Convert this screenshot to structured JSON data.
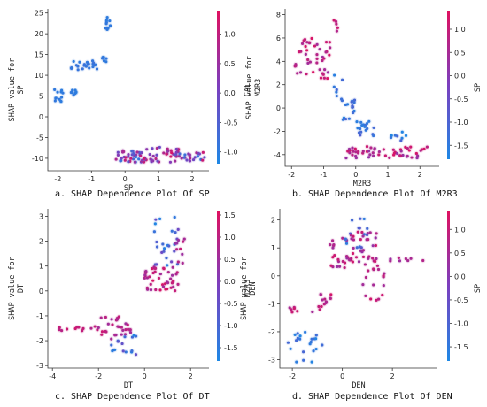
{
  "chart_data": [
    {
      "type": "scatter",
      "caption": "a. SHAP Dependence Plot Of SP",
      "xlabel": "SP",
      "ylabel_lines": [
        "SHAP value for",
        "SP"
      ],
      "color_feature": "CAL",
      "x_ticks": [
        -2,
        -1,
        0,
        1,
        2
      ],
      "y_ticks": [
        -10,
        -5,
        0,
        5,
        10,
        15,
        20,
        25
      ],
      "xlim": [
        -2.3,
        2.5
      ],
      "ylim": [
        -13,
        26
      ],
      "color_ticks": [
        1.0,
        0.5,
        0.0,
        -0.5,
        -1.0
      ],
      "color_range": [
        -1.2,
        1.4
      ],
      "clusters": [
        {
          "x": [
            -2.15,
            -1.85
          ],
          "y": [
            3,
            7
          ],
          "c": [
            -1.0,
            -0.9
          ],
          "n": 12
        },
        {
          "x": [
            -1.65,
            -1.45
          ],
          "y": [
            5,
            7
          ],
          "c": [
            -1.0,
            -0.9
          ],
          "n": 8
        },
        {
          "x": [
            -1.6,
            -0.8
          ],
          "y": [
            11,
            13.5
          ],
          "c": [
            -1.0,
            -0.8
          ],
          "n": 24
        },
        {
          "x": [
            -0.7,
            -0.5
          ],
          "y": [
            13,
            15
          ],
          "c": [
            -1.0,
            -0.9
          ],
          "n": 6
        },
        {
          "x": [
            -0.6,
            -0.4
          ],
          "y": [
            21,
            24
          ],
          "c": [
            -1.0,
            -0.9
          ],
          "n": 12
        },
        {
          "x": [
            -0.3,
            0.5
          ],
          "y": [
            -11,
            -8
          ],
          "c": [
            -1.0,
            1.2
          ],
          "n": 35
        },
        {
          "x": [
            0.5,
            1.6
          ],
          "y": [
            -11,
            -7
          ],
          "c": [
            -0.2,
            1.3
          ],
          "n": 40
        },
        {
          "x": [
            1.5,
            2.4
          ],
          "y": [
            -11,
            -8.5
          ],
          "c": [
            -1.0,
            1.2
          ],
          "n": 25
        }
      ]
    },
    {
      "type": "scatter",
      "caption": "b. SHAP Dependence Plot Of M2R3",
      "xlabel": "M2R3",
      "ylabel_lines": [
        "SHAP value for",
        "M2R3"
      ],
      "color_feature": "SP",
      "x_ticks": [
        -2,
        -1,
        0,
        1,
        2
      ],
      "y_ticks": [
        -4,
        -2,
        0,
        2,
        4,
        6,
        8
      ],
      "xlim": [
        -2.2,
        2.6
      ],
      "ylim": [
        -5,
        8.5
      ],
      "color_ticks": [
        1.0,
        0.5,
        0.0,
        -0.5,
        -1.0,
        -1.5
      ],
      "color_range": [
        -1.8,
        1.4
      ],
      "clusters": [
        {
          "x": [
            -1.9,
            -0.8
          ],
          "y": [
            2.5,
            6
          ],
          "c": [
            0.3,
            1.3
          ],
          "n": 45
        },
        {
          "x": [
            -0.7,
            -0.55
          ],
          "y": [
            6.5,
            8
          ],
          "c": [
            0.5,
            1.2
          ],
          "n": 5
        },
        {
          "x": [
            -0.7,
            -0.4
          ],
          "y": [
            0.5,
            3
          ],
          "c": [
            -1.8,
            -1.0
          ],
          "n": 8
        },
        {
          "x": [
            -0.4,
            0.0
          ],
          "y": [
            -1,
            1
          ],
          "c": [
            -1.8,
            -1.0
          ],
          "n": 15
        },
        {
          "x": [
            0.0,
            0.6
          ],
          "y": [
            -2.5,
            -1
          ],
          "c": [
            -1.6,
            -0.8
          ],
          "n": 18
        },
        {
          "x": [
            -0.3,
            2.3
          ],
          "y": [
            -4.3,
            -3.3
          ],
          "c": [
            0.2,
            1.3
          ],
          "n": 55
        },
        {
          "x": [
            0.8,
            1.6
          ],
          "y": [
            -3,
            -2
          ],
          "c": [
            -1.8,
            -1.0
          ],
          "n": 8
        }
      ]
    },
    {
      "type": "scatter",
      "caption": "c. SHAP Dependence Plot Of DT",
      "xlabel": "DT",
      "ylabel_lines": [
        "SHAP value for",
        "DT"
      ],
      "color_feature": "M2R3",
      "x_ticks": [
        -4,
        -2,
        0,
        2
      ],
      "y_ticks": [
        -3,
        -2,
        -1,
        0,
        1,
        2,
        3
      ],
      "xlim": [
        -4.2,
        2.8
      ],
      "ylim": [
        -3.1,
        3.3
      ],
      "color_ticks": [
        1.5,
        1.0,
        0.5,
        0.0,
        -0.5,
        -1.0,
        -1.5
      ],
      "color_range": [
        -1.8,
        1.6
      ],
      "clusters": [
        {
          "x": [
            -3.8,
            -2.0
          ],
          "y": [
            -1.6,
            -1.4
          ],
          "c": [
            0.8,
            1.3
          ],
          "n": 12
        },
        {
          "x": [
            -2.0,
            -0.5
          ],
          "y": [
            -2.0,
            -1.0
          ],
          "c": [
            0.5,
            1.3
          ],
          "n": 30
        },
        {
          "x": [
            -1.5,
            -0.3
          ],
          "y": [
            -2.9,
            -1.7
          ],
          "c": [
            -1.8,
            -0.5
          ],
          "n": 16
        },
        {
          "x": [
            0.0,
            1.5
          ],
          "y": [
            0.0,
            1.0
          ],
          "c": [
            0.5,
            1.5
          ],
          "n": 45
        },
        {
          "x": [
            0.3,
            1.5
          ],
          "y": [
            1.0,
            3.0
          ],
          "c": [
            -1.8,
            -0.3
          ],
          "n": 25
        },
        {
          "x": [
            1.3,
            2.2
          ],
          "y": [
            1.0,
            2.1
          ],
          "c": [
            0.3,
            1.2
          ],
          "n": 10
        }
      ]
    },
    {
      "type": "scatter",
      "caption": "d. SHAP Dependence Plot Of DEN",
      "xlabel": "DEN",
      "ylabel_lines": [
        "SHAP value for",
        "DEN"
      ],
      "color_feature": "SP",
      "x_ticks": [
        -2,
        0,
        2
      ],
      "y_ticks": [
        -3,
        -2,
        -1,
        0,
        1,
        2
      ],
      "xlim": [
        -2.5,
        3.8
      ],
      "ylim": [
        -3.3,
        2.4
      ],
      "color_ticks": [
        1.0,
        0.5,
        0.0,
        -0.5,
        -1.0,
        -1.5
      ],
      "color_range": [
        -1.8,
        1.4
      ],
      "clusters": [
        {
          "x": [
            -2.2,
            -1.8
          ],
          "y": [
            -1.3,
            -1.1
          ],
          "c": [
            0.5,
            1.2
          ],
          "n": 6
        },
        {
          "x": [
            -2.2,
            -0.8
          ],
          "y": [
            -3.1,
            -2.0
          ],
          "c": [
            -1.8,
            -1.0
          ],
          "n": 22
        },
        {
          "x": [
            -1.2,
            -0.3
          ],
          "y": [
            -1.3,
            -0.6
          ],
          "c": [
            0.3,
            1.2
          ],
          "n": 14
        },
        {
          "x": [
            -0.5,
            0.4
          ],
          "y": [
            0.2,
            1.4
          ],
          "c": [
            0.3,
            1.2
          ],
          "n": 25
        },
        {
          "x": [
            0.0,
            1.0
          ],
          "y": [
            1.0,
            2.1
          ],
          "c": [
            -1.6,
            -0.6
          ],
          "n": 15
        },
        {
          "x": [
            0.3,
            1.4
          ],
          "y": [
            0.5,
            1.6
          ],
          "c": [
            0.2,
            1.2
          ],
          "n": 30
        },
        {
          "x": [
            0.8,
            1.7
          ],
          "y": [
            -0.9,
            0.7
          ],
          "c": [
            0.4,
            1.2
          ],
          "n": 20
        },
        {
          "x": [
            1.8,
            3.4
          ],
          "y": [
            0.5,
            0.7
          ],
          "c": [
            0.3,
            0.9
          ],
          "n": 8
        }
      ]
    }
  ]
}
